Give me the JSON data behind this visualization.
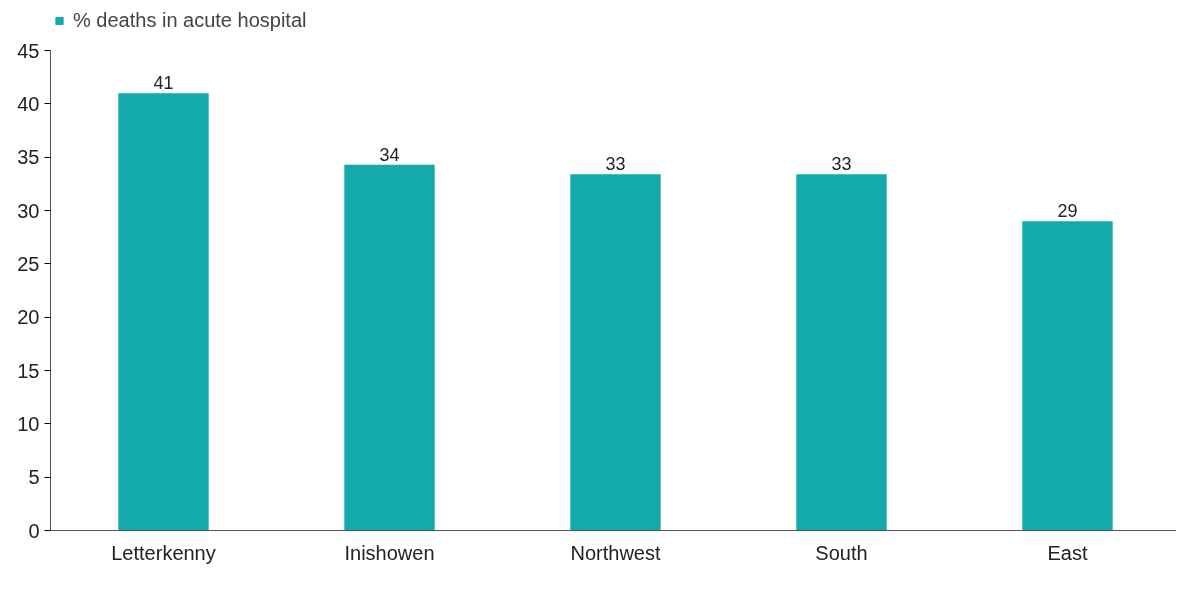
{
  "chart_data": {
    "type": "bar",
    "categories": [
      "Letterkenny",
      "Inishowen",
      "Northwest",
      "South",
      "East"
    ],
    "series": [
      {
        "name": "% deaths in acute hospital",
        "color": "#14a9ab",
        "values": [
          41,
          34.3,
          33.4,
          33.4,
          29.0
        ],
        "value_labels": [
          "41",
          "34",
          "33",
          "33",
          "29"
        ]
      }
    ],
    "ylim": [
      0,
      45
    ],
    "yticks": [
      0,
      5,
      10,
      15,
      20,
      25,
      30,
      35,
      40,
      45
    ],
    "grid": false,
    "legend": "top left"
  }
}
